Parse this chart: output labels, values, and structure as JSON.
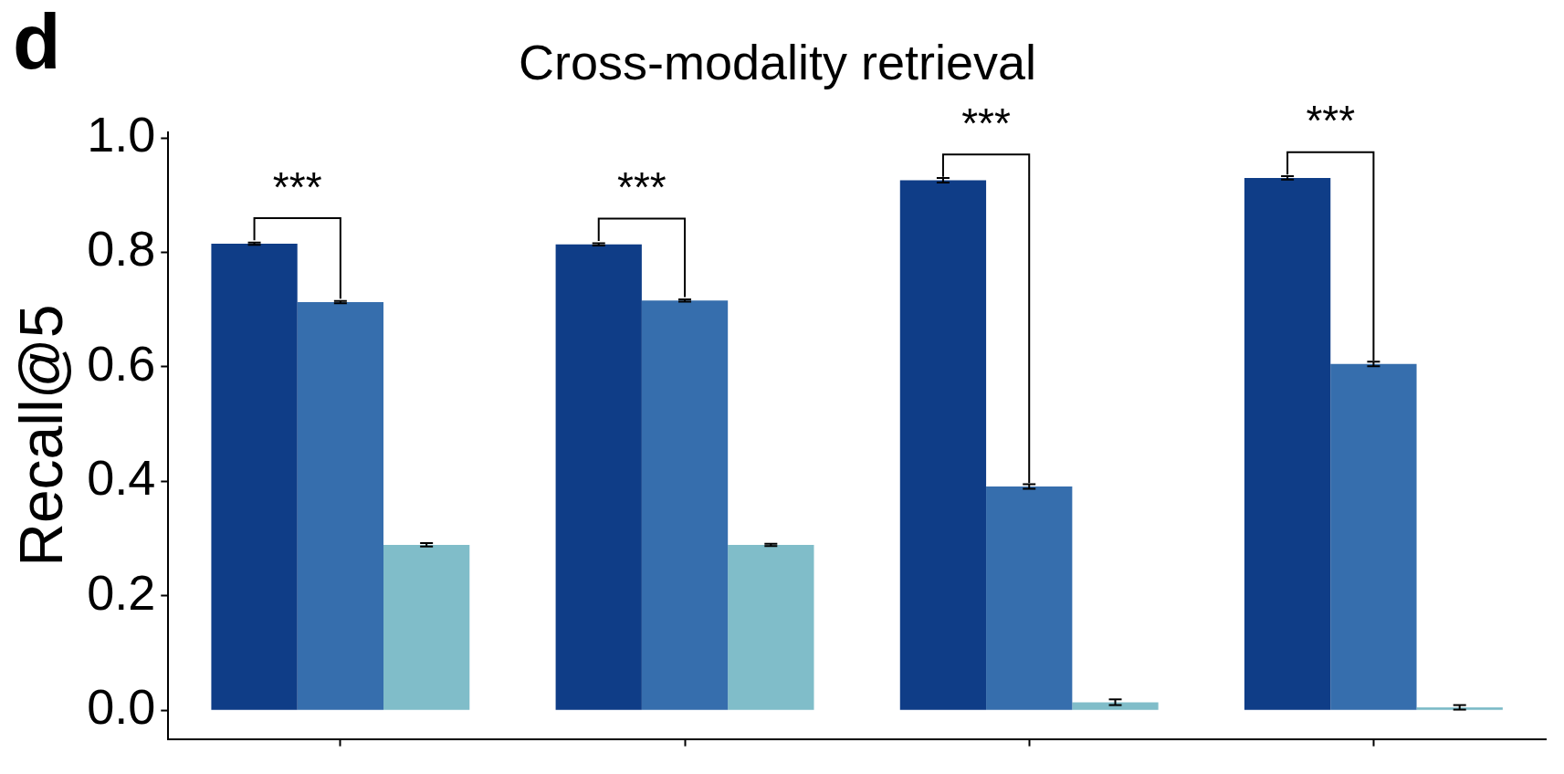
{
  "chart_data": {
    "type": "bar",
    "title": "Cross-modality retrieval",
    "ylabel": "Recall@5",
    "categories": [
      null,
      null,
      null,
      null
    ],
    "series": [
      {
        "color": "#0f3d87",
        "values": [
          0.815,
          0.814,
          0.926,
          0.93
        ],
        "errors": [
          0.002,
          0.002,
          0.004,
          0.003
        ]
      },
      {
        "color": "#366ead",
        "values": [
          0.713,
          0.716,
          0.391,
          0.605
        ],
        "errors": [
          0.002,
          0.002,
          0.004,
          0.004
        ]
      },
      {
        "color": "#80bdc9",
        "values": [
          0.289,
          0.289,
          0.014,
          0.005
        ],
        "errors": [
          0.003,
          0.002,
          0.005,
          0.004
        ]
      }
    ],
    "ylim": [
      -0.05,
      1.01
    ],
    "yticks": [
      {
        "value": 0,
        "label": "0.0"
      },
      {
        "value": 0.2,
        "label": "0.2"
      },
      {
        "value": 0.4,
        "label": "0.4"
      },
      {
        "value": 0.6,
        "label": "0.6"
      },
      {
        "value": 0.8,
        "label": "0.8"
      },
      {
        "value": 1,
        "label": "1.0"
      }
    ],
    "tick_labels": "y",
    "grid": false,
    "legend": false,
    "annotations": [
      "d",
      "***",
      "***",
      "***",
      "***"
    ]
  }
}
